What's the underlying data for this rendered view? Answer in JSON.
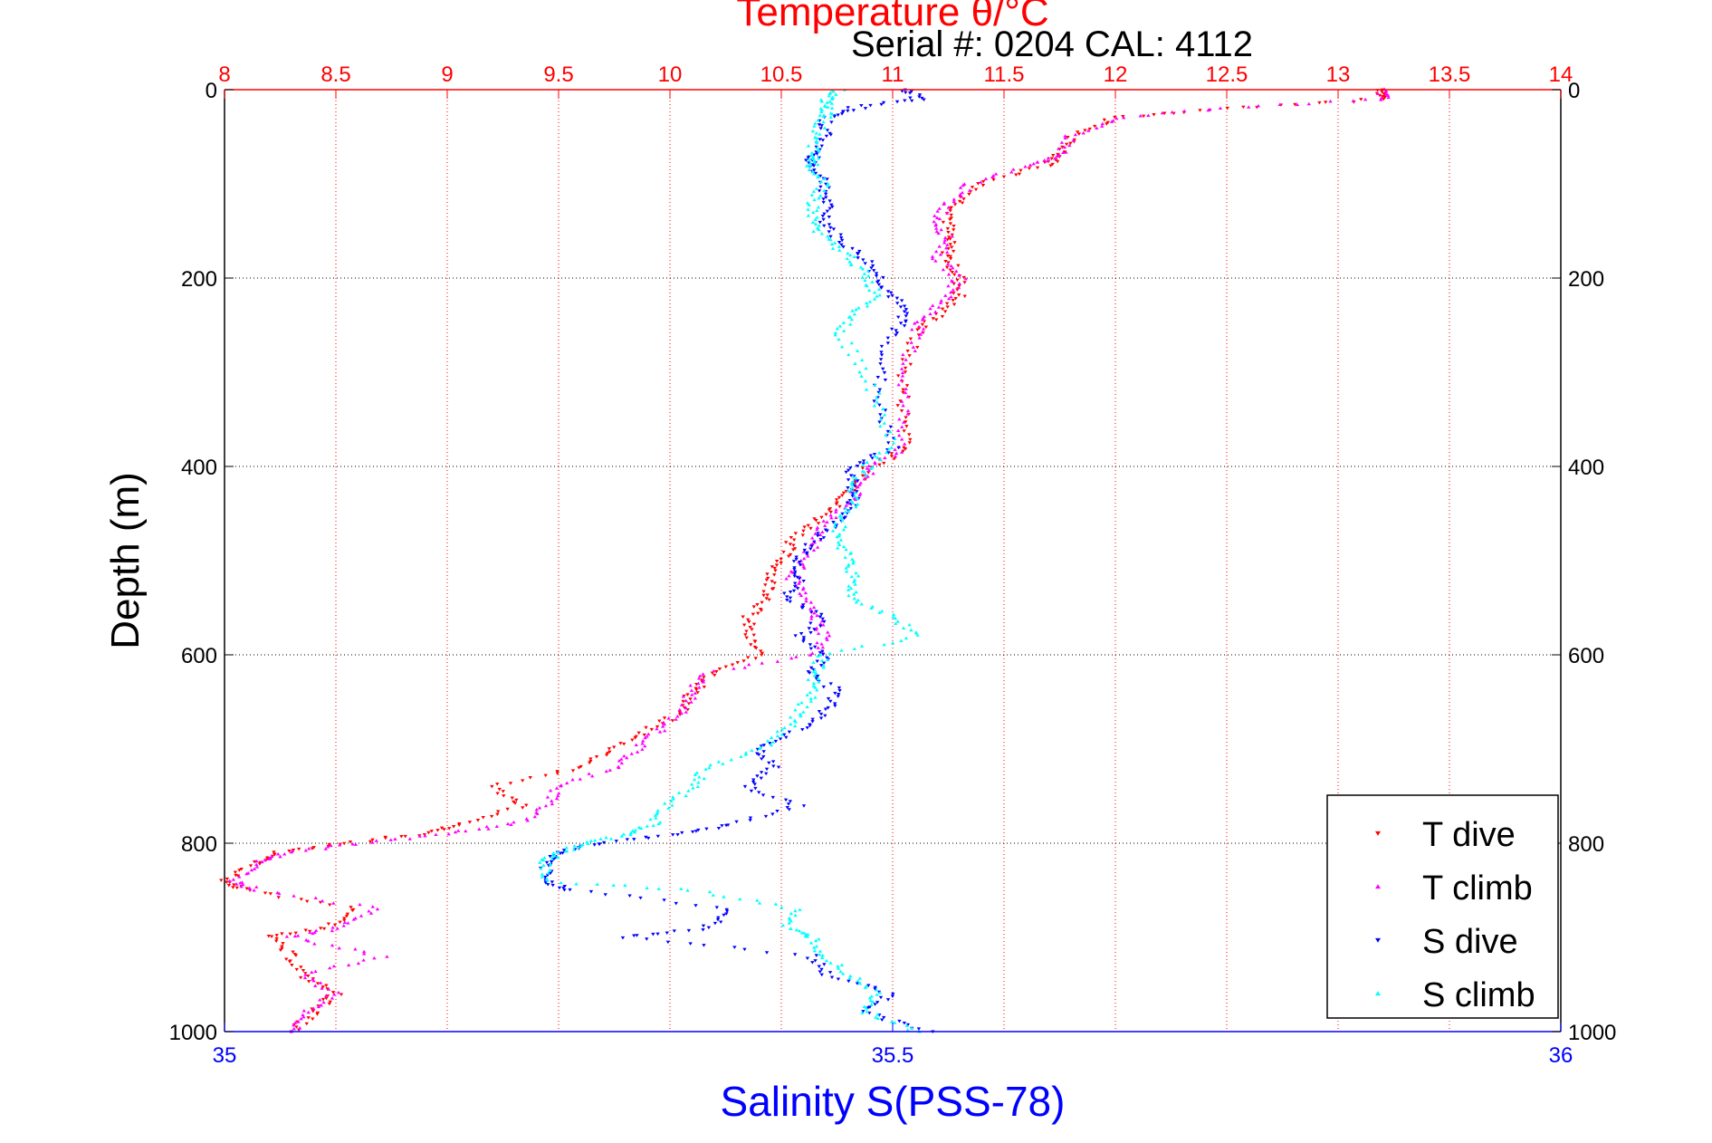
{
  "chart_data": {
    "type": "scatter",
    "title": "Temperature θ/°C",
    "subtitle": "Serial #: 0204  CAL: 4112",
    "ylabel": "Depth (m)",
    "xlabel": "Salinity S(PSS-78)",
    "y_reversed": true,
    "ylim": [
      0,
      1000
    ],
    "y_ticks": [
      "0",
      "200",
      "400",
      "600",
      "800",
      "1000"
    ],
    "temperature_axis": {
      "position": "top",
      "range": [
        8,
        14
      ],
      "ticks": [
        "8",
        "8.5",
        "9",
        "9.5",
        "10",
        "10.5",
        "11",
        "11.5",
        "12",
        "12.5",
        "13",
        "13.5",
        "14"
      ],
      "color": "#ff0000"
    },
    "salinity_axis": {
      "position": "bottom",
      "range": [
        35,
        36
      ],
      "ticks": [
        "35",
        "35.5",
        "36"
      ],
      "color": "#0000ff"
    },
    "grid": true,
    "legend_position": "bottom-right",
    "series": [
      {
        "name": "T dive",
        "axis": "temperature",
        "color": "#ff0000",
        "marker": "triangle-down",
        "profile": [
          [
            0,
            13.2
          ],
          [
            10,
            13.2
          ],
          [
            20,
            12.5
          ],
          [
            30,
            12.0
          ],
          [
            50,
            11.8
          ],
          [
            70,
            11.75
          ],
          [
            80,
            11.7
          ],
          [
            100,
            11.4
          ],
          [
            120,
            11.3
          ],
          [
            140,
            11.25
          ],
          [
            160,
            11.25
          ],
          [
            180,
            11.25
          ],
          [
            200,
            11.3
          ],
          [
            220,
            11.3
          ],
          [
            240,
            11.2
          ],
          [
            260,
            11.1
          ],
          [
            300,
            11.05
          ],
          [
            340,
            11.05
          ],
          [
            380,
            11.08
          ],
          [
            400,
            10.9
          ],
          [
            420,
            10.85
          ],
          [
            440,
            10.75
          ],
          [
            460,
            10.65
          ],
          [
            480,
            10.55
          ],
          [
            500,
            10.5
          ],
          [
            520,
            10.45
          ],
          [
            540,
            10.45
          ],
          [
            560,
            10.35
          ],
          [
            580,
            10.35
          ],
          [
            600,
            10.4
          ],
          [
            620,
            10.2
          ],
          [
            640,
            10.1
          ],
          [
            660,
            10.05
          ],
          [
            680,
            9.9
          ],
          [
            700,
            9.75
          ],
          [
            720,
            9.6
          ],
          [
            740,
            9.2
          ],
          [
            760,
            9.35
          ],
          [
            780,
            9.05
          ],
          [
            790,
            8.9
          ],
          [
            800,
            8.55
          ],
          [
            810,
            8.25
          ],
          [
            820,
            8.15
          ],
          [
            840,
            8.0
          ],
          [
            850,
            8.1
          ],
          [
            870,
            8.6
          ],
          [
            890,
            8.45
          ],
          [
            900,
            8.2
          ],
          [
            920,
            8.3
          ],
          [
            940,
            8.35
          ],
          [
            960,
            8.5
          ],
          [
            980,
            8.4
          ],
          [
            1000,
            8.3
          ]
        ]
      },
      {
        "name": "T climb",
        "axis": "temperature",
        "color": "#ff00ff",
        "marker": "triangle-up",
        "profile": [
          [
            0,
            13.2
          ],
          [
            10,
            13.2
          ],
          [
            20,
            12.5
          ],
          [
            30,
            12.0
          ],
          [
            50,
            11.8
          ],
          [
            70,
            11.75
          ],
          [
            80,
            11.6
          ],
          [
            100,
            11.35
          ],
          [
            120,
            11.25
          ],
          [
            140,
            11.2
          ],
          [
            160,
            11.25
          ],
          [
            180,
            11.2
          ],
          [
            200,
            11.3
          ],
          [
            220,
            11.25
          ],
          [
            240,
            11.15
          ],
          [
            260,
            11.1
          ],
          [
            300,
            11.05
          ],
          [
            340,
            11.05
          ],
          [
            380,
            11.05
          ],
          [
            400,
            10.9
          ],
          [
            420,
            10.85
          ],
          [
            440,
            10.8
          ],
          [
            460,
            10.7
          ],
          [
            480,
            10.65
          ],
          [
            500,
            10.6
          ],
          [
            520,
            10.55
          ],
          [
            540,
            10.6
          ],
          [
            560,
            10.65
          ],
          [
            580,
            10.7
          ],
          [
            600,
            10.65
          ],
          [
            620,
            10.15
          ],
          [
            640,
            10.1
          ],
          [
            660,
            10.05
          ],
          [
            680,
            9.95
          ],
          [
            700,
            9.85
          ],
          [
            720,
            9.75
          ],
          [
            740,
            9.5
          ],
          [
            760,
            9.45
          ],
          [
            780,
            9.3
          ],
          [
            790,
            9.0
          ],
          [
            800,
            8.6
          ],
          [
            810,
            8.3
          ],
          [
            820,
            8.15
          ],
          [
            840,
            8.05
          ],
          [
            850,
            8.15
          ],
          [
            870,
            8.7
          ],
          [
            890,
            8.5
          ],
          [
            900,
            8.3
          ],
          [
            920,
            8.7
          ],
          [
            940,
            8.35
          ],
          [
            960,
            8.5
          ],
          [
            980,
            8.35
          ],
          [
            1000,
            8.3
          ]
        ]
      },
      {
        "name": "S dive",
        "axis": "salinity",
        "color": "#0000ff",
        "marker": "triangle-down",
        "profile": [
          [
            0,
            35.51
          ],
          [
            10,
            35.52
          ],
          [
            20,
            35.47
          ],
          [
            30,
            35.45
          ],
          [
            50,
            35.45
          ],
          [
            70,
            35.44
          ],
          [
            80,
            35.44
          ],
          [
            100,
            35.45
          ],
          [
            120,
            35.45
          ],
          [
            140,
            35.45
          ],
          [
            160,
            35.46
          ],
          [
            180,
            35.48
          ],
          [
            200,
            35.49
          ],
          [
            220,
            35.5
          ],
          [
            240,
            35.51
          ],
          [
            260,
            35.5
          ],
          [
            300,
            35.49
          ],
          [
            340,
            35.49
          ],
          [
            380,
            35.5
          ],
          [
            400,
            35.47
          ],
          [
            420,
            35.47
          ],
          [
            440,
            35.47
          ],
          [
            460,
            35.46
          ],
          [
            480,
            35.44
          ],
          [
            500,
            35.43
          ],
          [
            520,
            35.43
          ],
          [
            540,
            35.42
          ],
          [
            560,
            35.45
          ],
          [
            580,
            35.43
          ],
          [
            600,
            35.45
          ],
          [
            620,
            35.44
          ],
          [
            640,
            35.46
          ],
          [
            660,
            35.45
          ],
          [
            680,
            35.43
          ],
          [
            700,
            35.4
          ],
          [
            720,
            35.41
          ],
          [
            740,
            35.39
          ],
          [
            760,
            35.43
          ],
          [
            780,
            35.38
          ],
          [
            790,
            35.34
          ],
          [
            800,
            35.28
          ],
          [
            810,
            35.25
          ],
          [
            820,
            35.24
          ],
          [
            840,
            35.24
          ],
          [
            850,
            35.26
          ],
          [
            870,
            35.38
          ],
          [
            890,
            35.36
          ],
          [
            900,
            35.3
          ],
          [
            920,
            35.44
          ],
          [
            940,
            35.45
          ],
          [
            960,
            35.5
          ],
          [
            980,
            35.48
          ],
          [
            1000,
            35.53
          ]
        ]
      },
      {
        "name": "S climb",
        "axis": "salinity",
        "color": "#00ffff",
        "marker": "triangle-up",
        "profile": [
          [
            0,
            35.46
          ],
          [
            10,
            35.45
          ],
          [
            20,
            35.45
          ],
          [
            30,
            35.45
          ],
          [
            50,
            35.44
          ],
          [
            70,
            35.44
          ],
          [
            80,
            35.44
          ],
          [
            100,
            35.45
          ],
          [
            120,
            35.44
          ],
          [
            140,
            35.44
          ],
          [
            160,
            35.45
          ],
          [
            180,
            35.47
          ],
          [
            200,
            35.48
          ],
          [
            220,
            35.49
          ],
          [
            240,
            35.47
          ],
          [
            260,
            35.46
          ],
          [
            300,
            35.48
          ],
          [
            340,
            35.49
          ],
          [
            380,
            35.5
          ],
          [
            400,
            35.48
          ],
          [
            420,
            35.47
          ],
          [
            440,
            35.47
          ],
          [
            460,
            35.46
          ],
          [
            480,
            35.46
          ],
          [
            500,
            35.47
          ],
          [
            520,
            35.47
          ],
          [
            540,
            35.47
          ],
          [
            560,
            35.5
          ],
          [
            580,
            35.52
          ],
          [
            600,
            35.45
          ],
          [
            620,
            35.44
          ],
          [
            640,
            35.44
          ],
          [
            660,
            35.43
          ],
          [
            680,
            35.42
          ],
          [
            700,
            35.4
          ],
          [
            720,
            35.36
          ],
          [
            740,
            35.35
          ],
          [
            760,
            35.33
          ],
          [
            780,
            35.32
          ],
          [
            790,
            35.3
          ],
          [
            800,
            35.27
          ],
          [
            810,
            35.25
          ],
          [
            820,
            35.24
          ],
          [
            840,
            35.24
          ],
          [
            850,
            35.35
          ],
          [
            870,
            35.43
          ],
          [
            890,
            35.42
          ],
          [
            900,
            35.44
          ],
          [
            920,
            35.45
          ],
          [
            940,
            35.47
          ],
          [
            960,
            35.49
          ],
          [
            980,
            35.48
          ],
          [
            1000,
            35.52
          ]
        ]
      }
    ]
  }
}
